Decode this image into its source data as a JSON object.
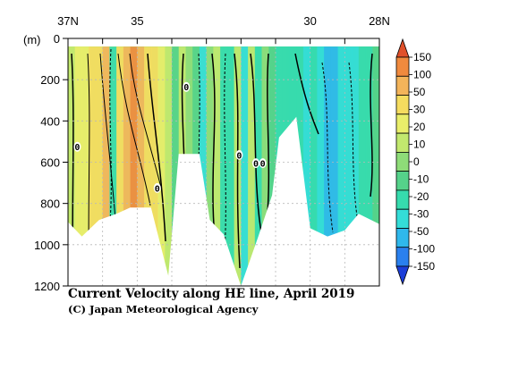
{
  "chart_data": {
    "type": "heatmap",
    "title": "Current Velocity along HE line, April 2019",
    "credit": "(C) Japan Meteorological Agency",
    "ylabel": "(m)",
    "x_ticks": [
      {
        "lat": 37,
        "label": "37N"
      },
      {
        "lat": 36,
        "label": ""
      },
      {
        "lat": 35,
        "label": "35"
      },
      {
        "lat": 34,
        "label": ""
      },
      {
        "lat": 33,
        "label": ""
      },
      {
        "lat": 32,
        "label": ""
      },
      {
        "lat": 31,
        "label": ""
      },
      {
        "lat": 30,
        "label": "30"
      },
      {
        "lat": 29,
        "label": ""
      },
      {
        "lat": 28,
        "label": "28N"
      }
    ],
    "xlim": [
      37,
      28
    ],
    "ylim": [
      0,
      1200
    ],
    "y_ticks": [
      0,
      200,
      400,
      600,
      800,
      1000,
      1200
    ],
    "colorbar": {
      "labels": [
        "150",
        "100",
        "50",
        "30",
        "20",
        "10",
        "0",
        "-10",
        "-20",
        "-30",
        "-50",
        "-100",
        "-150"
      ],
      "colors": [
        "#e0502a",
        "#f08a3e",
        "#f3b45a",
        "#f5dc5f",
        "#e9ee6a",
        "#c2e86e",
        "#8edc78",
        "#55d28a",
        "#36dbae",
        "#34ddd8",
        "#2fb8ec",
        "#2a80ee",
        "#1c3ed8"
      ]
    },
    "contour_labels": [
      {
        "lat": 36.73,
        "depth": 525,
        "label": "0"
      },
      {
        "lat": 33.58,
        "depth": 235,
        "label": "0"
      },
      {
        "lat": 34.42,
        "depth": 725,
        "label": "0"
      },
      {
        "lat": 32.05,
        "depth": 565,
        "label": "0"
      },
      {
        "lat": 31.57,
        "depth": 605,
        "label": "0"
      },
      {
        "lat": 31.37,
        "depth": 605,
        "label": "0"
      }
    ],
    "bottom_profile": [
      {
        "lat": 37.0,
        "depth": 890
      },
      {
        "lat": 36.6,
        "depth": 960
      },
      {
        "lat": 36.1,
        "depth": 880
      },
      {
        "lat": 35.6,
        "depth": 850
      },
      {
        "lat": 35.2,
        "depth": 820
      },
      {
        "lat": 34.6,
        "depth": 820
      },
      {
        "lat": 34.1,
        "depth": 1150
      },
      {
        "lat": 33.8,
        "depth": 560
      },
      {
        "lat": 33.2,
        "depth": 560
      },
      {
        "lat": 32.9,
        "depth": 880
      },
      {
        "lat": 32.5,
        "depth": 950
      },
      {
        "lat": 32.0,
        "depth": 1200
      },
      {
        "lat": 31.5,
        "depth": 960
      },
      {
        "lat": 31.1,
        "depth": 760
      },
      {
        "lat": 30.9,
        "depth": 480
      },
      {
        "lat": 30.4,
        "depth": 380
      },
      {
        "lat": 30.0,
        "depth": 920
      },
      {
        "lat": 29.5,
        "depth": 960
      },
      {
        "lat": 29.0,
        "depth": 930
      },
      {
        "lat": 28.6,
        "depth": 850
      },
      {
        "lat": 28.0,
        "depth": 900
      }
    ],
    "velocity_columns": [
      {
        "lat": 36.9,
        "value": 15
      },
      {
        "lat": 36.7,
        "value": 20
      },
      {
        "lat": 36.5,
        "value": 25
      },
      {
        "lat": 36.3,
        "value": 30
      },
      {
        "lat": 36.1,
        "value": 40
      },
      {
        "lat": 35.9,
        "value": 55
      },
      {
        "lat": 35.7,
        "value": -15
      },
      {
        "lat": 35.5,
        "value": 40
      },
      {
        "lat": 35.3,
        "value": 70
      },
      {
        "lat": 35.1,
        "value": 110
      },
      {
        "lat": 34.9,
        "value": 90
      },
      {
        "lat": 34.7,
        "value": 45
      },
      {
        "lat": 34.5,
        "value": 30
      },
      {
        "lat": 34.3,
        "value": 22
      },
      {
        "lat": 34.1,
        "value": 15
      },
      {
        "lat": 33.9,
        "value": -5
      },
      {
        "lat": 33.7,
        "value": 12
      },
      {
        "lat": 33.5,
        "value": 8
      },
      {
        "lat": 33.3,
        "value": -10
      },
      {
        "lat": 33.1,
        "value": -22
      },
      {
        "lat": 32.9,
        "value": 5
      },
      {
        "lat": 32.7,
        "value": 18
      },
      {
        "lat": 32.5,
        "value": -18
      },
      {
        "lat": 32.3,
        "value": -12
      },
      {
        "lat": 32.1,
        "value": 10
      },
      {
        "lat": 31.9,
        "value": -25
      },
      {
        "lat": 31.7,
        "value": 12
      },
      {
        "lat": 31.5,
        "value": -15
      },
      {
        "lat": 31.3,
        "value": 8
      },
      {
        "lat": 31.1,
        "value": -10
      },
      {
        "lat": 30.9,
        "value": -18
      },
      {
        "lat": 30.7,
        "value": -14
      },
      {
        "lat": 30.5,
        "value": -16
      },
      {
        "lat": 30.3,
        "value": -20
      },
      {
        "lat": 30.1,
        "value": -25
      },
      {
        "lat": 29.9,
        "value": -20
      },
      {
        "lat": 29.7,
        "value": -30
      },
      {
        "lat": 29.5,
        "value": -45
      },
      {
        "lat": 29.3,
        "value": -40
      },
      {
        "lat": 29.1,
        "value": -30
      },
      {
        "lat": 28.9,
        "value": -25
      },
      {
        "lat": 28.7,
        "value": -22
      },
      {
        "lat": 28.5,
        "value": -18
      },
      {
        "lat": 28.3,
        "value": -12
      },
      {
        "lat": 28.1,
        "value": -8
      }
    ]
  }
}
